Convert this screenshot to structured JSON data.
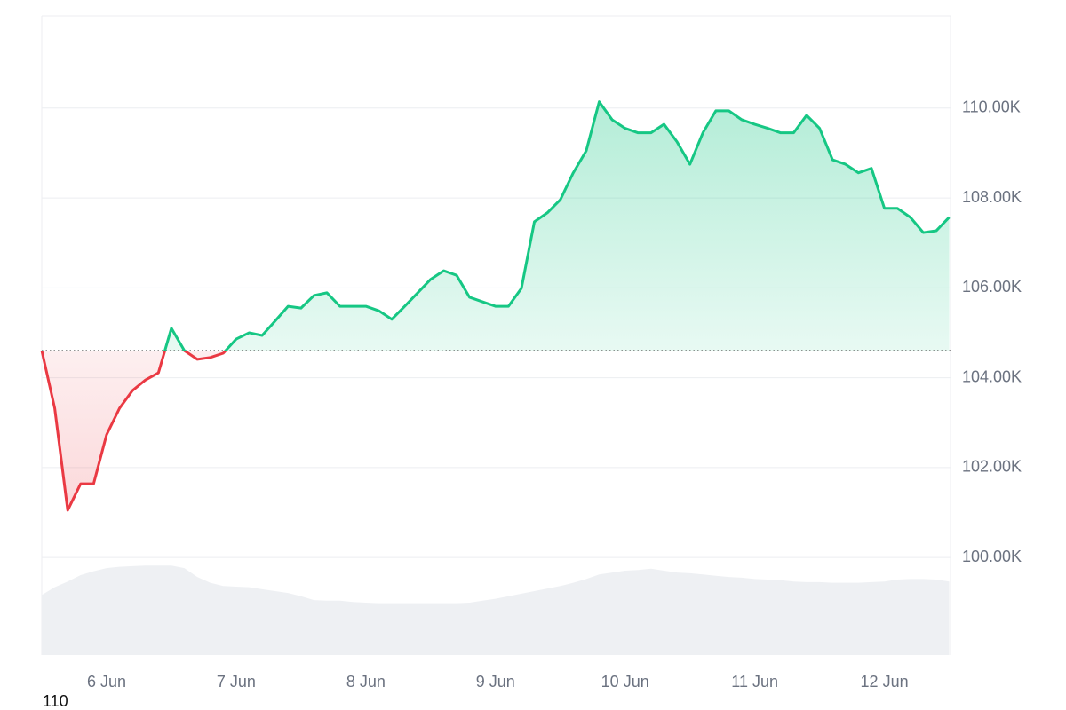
{
  "chart_data": {
    "type": "area",
    "x": [
      5.5,
      5.6,
      5.7,
      5.8,
      5.9,
      6.0,
      6.1,
      6.2,
      6.3,
      6.4,
      6.5,
      6.6,
      6.7,
      6.8,
      6.9,
      7.0,
      7.1,
      7.2,
      7.3,
      7.4,
      7.5,
      7.6,
      7.7,
      7.8,
      7.9,
      8.0,
      8.1,
      8.2,
      8.3,
      8.4,
      8.5,
      8.6,
      8.7,
      8.8,
      8.9,
      9.0,
      9.1,
      9.2,
      9.3,
      9.4,
      9.5,
      9.6,
      9.7,
      9.8,
      9.9,
      10.0,
      10.1,
      10.2,
      10.3,
      10.4,
      10.5,
      10.6,
      10.7,
      10.8,
      10.9,
      11.0,
      11.1,
      11.2,
      11.3,
      11.4,
      11.5,
      11.6,
      11.7,
      11.8,
      11.9,
      12.0,
      12.1,
      12.2,
      12.3,
      12.4,
      12.5
    ],
    "values": [
      104605,
      103320,
      101050,
      101640,
      101640,
      102730,
      103320,
      103715,
      103950,
      104110,
      105100,
      104605,
      104410,
      104450,
      104545,
      104860,
      105000,
      104940,
      105260,
      105590,
      105550,
      105830,
      105890,
      105590,
      105590,
      105590,
      105490,
      105300,
      105590,
      105890,
      106190,
      106380,
      106280,
      105790,
      105690,
      105590,
      105590,
      105990,
      107470,
      107670,
      107960,
      108560,
      109050,
      110140,
      109740,
      109550,
      109450,
      109450,
      109640,
      109250,
      108750,
      109450,
      109940,
      109940,
      109740,
      109640,
      109550,
      109450,
      109450,
      109840,
      109550,
      108850,
      108750,
      108560,
      108660,
      107770,
      107770,
      107570,
      107230,
      107270,
      107570
    ],
    "up_color": "#16c784",
    "down_color": "#ea3943",
    "xlim": [
      5.5,
      12.51
    ],
    "xticks": [
      {
        "value": 6,
        "label": "6 Jun"
      },
      {
        "value": 7,
        "label": "7 Jun"
      },
      {
        "value": 8,
        "label": "8 Jun"
      },
      {
        "value": 9,
        "label": "9 Jun"
      },
      {
        "value": 10,
        "label": "10 Jun"
      },
      {
        "value": 11,
        "label": "11 Jun"
      },
      {
        "value": 12,
        "label": "12 Jun"
      }
    ],
    "ylim": [
      97830,
      112050
    ],
    "yticks": [
      {
        "value": 100000,
        "label": "100.00K"
      },
      {
        "value": 102000,
        "label": "102.00K"
      },
      {
        "value": 104000,
        "label": "104.00K"
      },
      {
        "value": 106000,
        "label": "106.00K"
      },
      {
        "value": 108000,
        "label": "108.00K"
      },
      {
        "value": 110000,
        "label": "110.00K"
      }
    ],
    "grid": true,
    "volume": {
      "color": "#eef0f3",
      "values": [
        9.4,
        10.6,
        11.5,
        12.5,
        13.1,
        13.6,
        13.8,
        13.9,
        14.0,
        14.0,
        14.0,
        13.6,
        12.2,
        11.3,
        10.8,
        10.7,
        10.6,
        10.3,
        10.0,
        9.7,
        9.2,
        8.6,
        8.5,
        8.5,
        8.3,
        8.2,
        8.1,
        8.1,
        8.1,
        8.1,
        8.1,
        8.1,
        8.1,
        8.2,
        8.5,
        8.8,
        9.2,
        9.6,
        10.0,
        10.4,
        10.8,
        11.3,
        11.9,
        12.6,
        12.9,
        13.2,
        13.3,
        13.5,
        13.2,
        12.9,
        12.8,
        12.6,
        12.4,
        12.2,
        12.1,
        11.9,
        11.8,
        11.7,
        11.5,
        11.4,
        11.4,
        11.3,
        11.3,
        11.3,
        11.4,
        11.5,
        11.8,
        11.9,
        11.9,
        11.8,
        11.5
      ]
    },
    "y2lim": [
      0,
      100
    ],
    "annotation": "110"
  }
}
